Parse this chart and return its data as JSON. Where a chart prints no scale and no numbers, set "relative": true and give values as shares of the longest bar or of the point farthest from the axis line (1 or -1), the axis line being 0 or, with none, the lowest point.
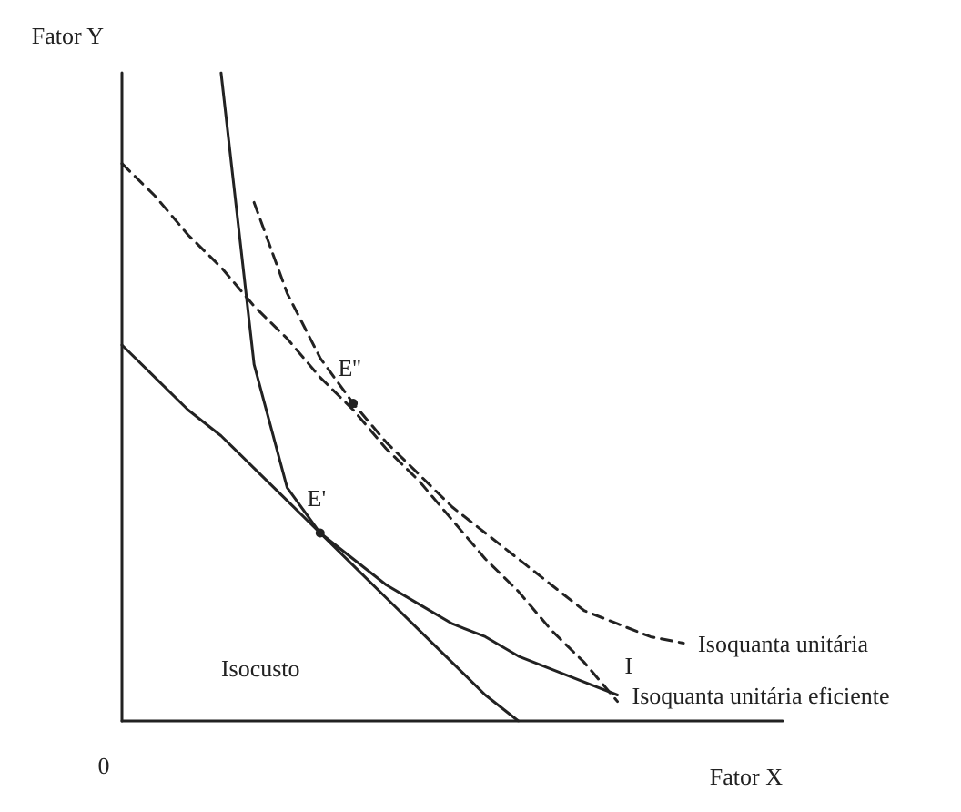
{
  "chart_data": {
    "type": "line",
    "relative": true,
    "xlabel": "Fator X",
    "ylabel": "Fator Y",
    "annotations": [
      "0",
      "Isocusto",
      {
        "text": "E'",
        "y": 0.29
      },
      {
        "text": "E''",
        "y": 0.49
      }
    ],
    "marker": "none",
    "grid": false,
    "legend": false,
    "categories": [
      null,
      null,
      null,
      null,
      null,
      null,
      null,
      null,
      null,
      null,
      null,
      null,
      null,
      null,
      null,
      null,
      null,
      null,
      null,
      null,
      null
    ],
    "series": [
      {
        "color": "#222222",
        "line_style": "solid",
        "values": [
          0.58,
          0.53,
          0.48,
          0.44,
          0.39,
          0.34,
          0.29,
          0.24,
          0.19,
          0.14,
          0.09,
          0.04,
          0,
          null,
          null,
          null,
          null,
          null,
          null,
          null,
          null
        ]
      },
      {
        "name": "I",
        "color": "#222222",
        "line_style": "dashed",
        "values": [
          0.86,
          0.81,
          0.75,
          0.7,
          0.64,
          0.59,
          0.53,
          0.48,
          0.42,
          0.37,
          0.31,
          0.25,
          0.2,
          0.14,
          0.09,
          0.03,
          null,
          null,
          null,
          null,
          null
        ]
      },
      {
        "name": "Isoquanta unitária eficiente",
        "color": "#222222",
        "line_style": "solid",
        "values": [
          null,
          null,
          null,
          1.0,
          0.55,
          0.36,
          0.29,
          0.25,
          0.21,
          0.18,
          0.15,
          0.13,
          0.1,
          0.08,
          0.06,
          0.04,
          null,
          null,
          null,
          null,
          null
        ]
      },
      {
        "name": "Isoquanta unitária",
        "color": "#222222",
        "line_style": "dashed",
        "values": [
          null,
          null,
          null,
          null,
          0.8,
          0.66,
          0.56,
          0.49,
          0.43,
          0.38,
          0.33,
          0.29,
          0.25,
          0.21,
          0.17,
          0.15,
          0.13,
          0.12,
          null,
          null,
          null
        ]
      }
    ]
  }
}
